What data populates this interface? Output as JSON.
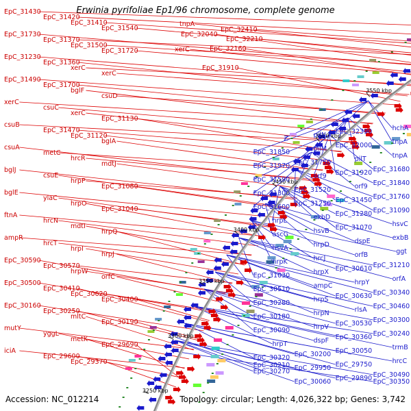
{
  "title": "Erwinia pyrifoliae Ep1/96 chromosome, complete genome",
  "accession": "Accession: NC_012214",
  "summary": "Topology: circular; Length: 4,026,322 bp; Genes: 3,742",
  "colors": {
    "forward": "#dd0000",
    "reverse": "#1a1acc",
    "backbone": "#888888",
    "tick": "#2a8a2a"
  },
  "bp_labels": [
    "3550 kbp",
    "3500 kbp",
    "3450 kbp",
    "3400 kbp",
    "3350 kbp",
    "3300 kbp",
    "3250 kbp"
  ],
  "left_labels": [
    "EpC_31430",
    "EpC_31420",
    "EpC_31410",
    "EpC_31540",
    "EpC_31730",
    "EpC_31370",
    "EpC_31500",
    "EpC_31720",
    "EpC_31230",
    "EpC_31360",
    "xerC",
    "xerC",
    "EpC_31490",
    "EpC_31700",
    "bglF",
    "csuD",
    "xerC",
    "csuC",
    "xerC",
    "EpC_31130",
    "csuB",
    "EpC_31470",
    "EpC_31120",
    "bglA",
    "csuA",
    "metC",
    "hrcR",
    "mdtJ",
    "bglJ",
    "csuE",
    "hrpP",
    "EpC_31080",
    "bglE",
    "ylaC",
    "hrpO",
    "EpC_31040",
    "ftnA",
    "hrcN",
    "mdtI",
    "hrpQ",
    "ampR",
    "hrcT",
    "hrpI",
    "hrpJ",
    "EpC_30590",
    "EpC_30570",
    "hrpW",
    "orfC",
    "EpC_30500",
    "EpC_30410",
    "EpC_30620",
    "EpC_30400",
    "EpC_30160",
    "EpC_30250",
    "mltC",
    "EpC_30190",
    "mutY",
    "yggL",
    "metK",
    "EpC_29690",
    "iciA",
    "EpC_29600",
    "EpC_29370",
    "tnpA",
    "EpC_32040",
    "EpC_32410",
    "EpC_32210",
    "xerC",
    "EpC_32160",
    "EpC_31910"
  ],
  "right_labels": [
    "hchA",
    "EpC_32390",
    "pilN",
    "Z",
    "tnpA",
    "EpC_32000",
    "pilM",
    "EpC_31850",
    "tnpA",
    "pilT",
    "EpC_31750",
    "EpC_31970",
    "EpC_31680",
    "EpC_31920",
    "orf9",
    "EpC_31590",
    "EpC_31840",
    "orf9",
    "EpC_31520",
    "EpC_31300",
    "EpC_31760",
    "EpC_31450",
    "EpC_31250",
    "EpC_31600",
    "EpC_31090",
    "EpC_31280",
    "exbD",
    "hrpL",
    "hsvC",
    "EpC_31070",
    "hsvB",
    "ascG",
    "exbB",
    "dspE",
    "hrpD",
    "hsvA",
    "ggt",
    "orfB",
    "hrcJ",
    "hrpK",
    "EpC_31210",
    "EpC_30610",
    "hrpX",
    "EpC_31030",
    "orfA",
    "hrpY",
    "ampC",
    "EpC_30510",
    "EpC_30340",
    "EpC_30630",
    "hrpS",
    "EpC_30280",
    "EpC_30460",
    "rlsA",
    "hrpN",
    "EpC_30180",
    "EpC_30300",
    "EpC_30530",
    "hrpV",
    "EpC_30090",
    "EpC_30240",
    "EpC_30360",
    "dspF",
    "hrpT",
    "trmB",
    "EpC_30050",
    "EpC_30200",
    "EpC_30320",
    "hrcC",
    "EpC_29750",
    "EpC_29950",
    "EpC_30270",
    "EpC_30490",
    "EpC_29890",
    "EpC_30060",
    "EpC_30210",
    "EpC_30350"
  ]
}
